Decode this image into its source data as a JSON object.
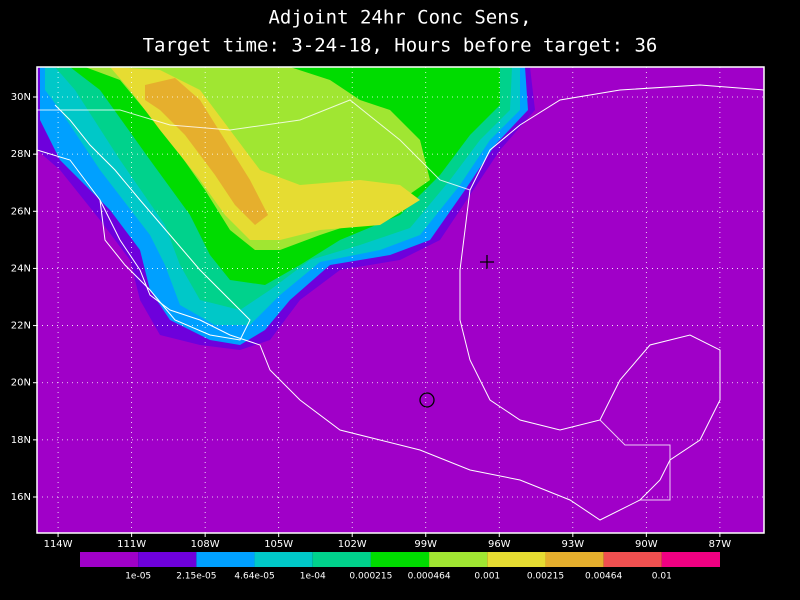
{
  "title": [
    "Adjoint 24hr Conc Sens,",
    "Target time: 3-24-18, Hours before target: 36"
  ],
  "map": {
    "xlim": [
      -114.86,
      -85.2
    ],
    "ylim": [
      14.74,
      31.05
    ],
    "xticks": [
      {
        "value": -114,
        "label": "114W"
      },
      {
        "value": -111,
        "label": "111W"
      },
      {
        "value": -108,
        "label": "108W"
      },
      {
        "value": -105,
        "label": "105W"
      },
      {
        "value": -102,
        "label": "102W"
      },
      {
        "value": -99,
        "label": "99W"
      },
      {
        "value": -96,
        "label": "96W"
      },
      {
        "value": -93,
        "label": "93W"
      },
      {
        "value": -90,
        "label": "90W"
      },
      {
        "value": -87,
        "label": "87W"
      }
    ],
    "yticks": [
      {
        "value": 16,
        "label": "16N"
      },
      {
        "value": 18,
        "label": "18N"
      },
      {
        "value": 20,
        "label": "20N"
      },
      {
        "value": 22,
        "label": "22N"
      },
      {
        "value": 24,
        "label": "24N"
      },
      {
        "value": 26,
        "label": "26N"
      },
      {
        "value": 28,
        "label": "28N"
      },
      {
        "value": 30,
        "label": "30N"
      }
    ],
    "grid": true
  },
  "colorbar": {
    "colors": [
      "#a000c8",
      "#6e00dc",
      "#00a0ff",
      "#00c8c8",
      "#00d28c",
      "#00dc00",
      "#a0e632",
      "#e6dc32",
      "#e6af2d",
      "#f05050",
      "#f00082"
    ],
    "labels": [
      "1e-05",
      "2.15e-05",
      "4.64e-05",
      "1e-04",
      "0.000215",
      "0.000464",
      "0.001",
      "0.00215",
      "0.00464",
      "0.01"
    ]
  }
}
